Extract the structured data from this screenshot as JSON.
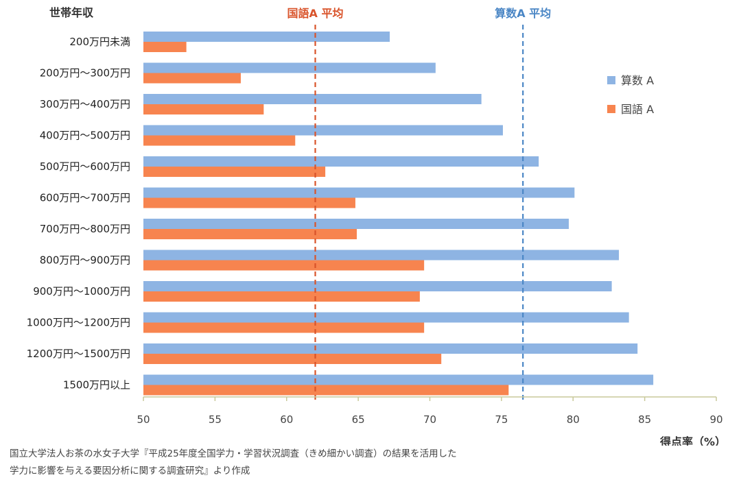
{
  "chart_data": {
    "type": "bar",
    "orientation": "horizontal",
    "ylabel": "世帯年収",
    "xlabel": "得点率（%）",
    "xlim": [
      50,
      90
    ],
    "xticks": [
      50,
      55,
      60,
      65,
      70,
      75,
      80,
      85,
      90
    ],
    "categories": [
      "200万円未満",
      "200万円～300万円",
      "300万円～400万円",
      "400万円～500万円",
      "500万円～600万円",
      "600万円～700万円",
      "700万円～800万円",
      "800万円～900万円",
      "900万円～1000万円",
      "1000万円～1200万円",
      "1200万円～1500万円",
      "1500万円以上"
    ],
    "series": [
      {
        "name": "算数 A",
        "color": "#8eb4e3",
        "values": [
          67.2,
          70.4,
          73.6,
          75.1,
          77.6,
          80.1,
          79.7,
          83.2,
          82.7,
          83.9,
          84.5,
          85.6
        ]
      },
      {
        "name": "国語 A",
        "color": "#f7844f",
        "values": [
          53.0,
          56.8,
          58.4,
          60.6,
          62.7,
          64.8,
          64.9,
          69.6,
          69.3,
          69.6,
          70.8,
          75.5
        ]
      }
    ],
    "reference_lines": [
      {
        "label": "国語A 平均",
        "value": 62.0,
        "color": "#d9532a"
      },
      {
        "label": "算数A 平均",
        "value": 76.5,
        "color": "#4a86c5"
      }
    ],
    "legend_position": "top-right"
  },
  "source": {
    "line1": "国立大学法人お茶の水女子大学『平成25年度全国学力・学習状況調査（きめ細かい調査）の結果を活用した",
    "line2": "学力に影響を与える要因分析に関する調査研究』より作成"
  }
}
